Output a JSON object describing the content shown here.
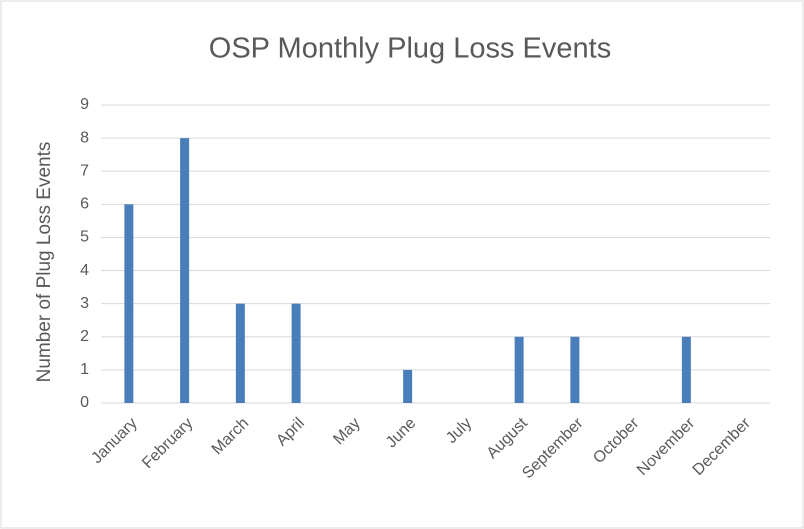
{
  "chart_data": {
    "type": "bar",
    "title": "OSP Monthly Plug Loss Events",
    "y_label": "Number of Plug Loss Events",
    "categories": [
      "January",
      "February",
      "March",
      "April",
      "May",
      "June",
      "July",
      "August",
      "September",
      "October",
      "November",
      "December"
    ],
    "values": [
      6,
      8,
      3,
      3,
      0,
      1,
      0,
      2,
      2,
      0,
      2,
      0
    ],
    "color": "#4a7ebb",
    "ylim": [
      0,
      9
    ],
    "yticks": [
      0,
      1,
      2,
      3,
      4,
      5,
      6,
      7,
      8,
      9
    ],
    "grid": true
  }
}
